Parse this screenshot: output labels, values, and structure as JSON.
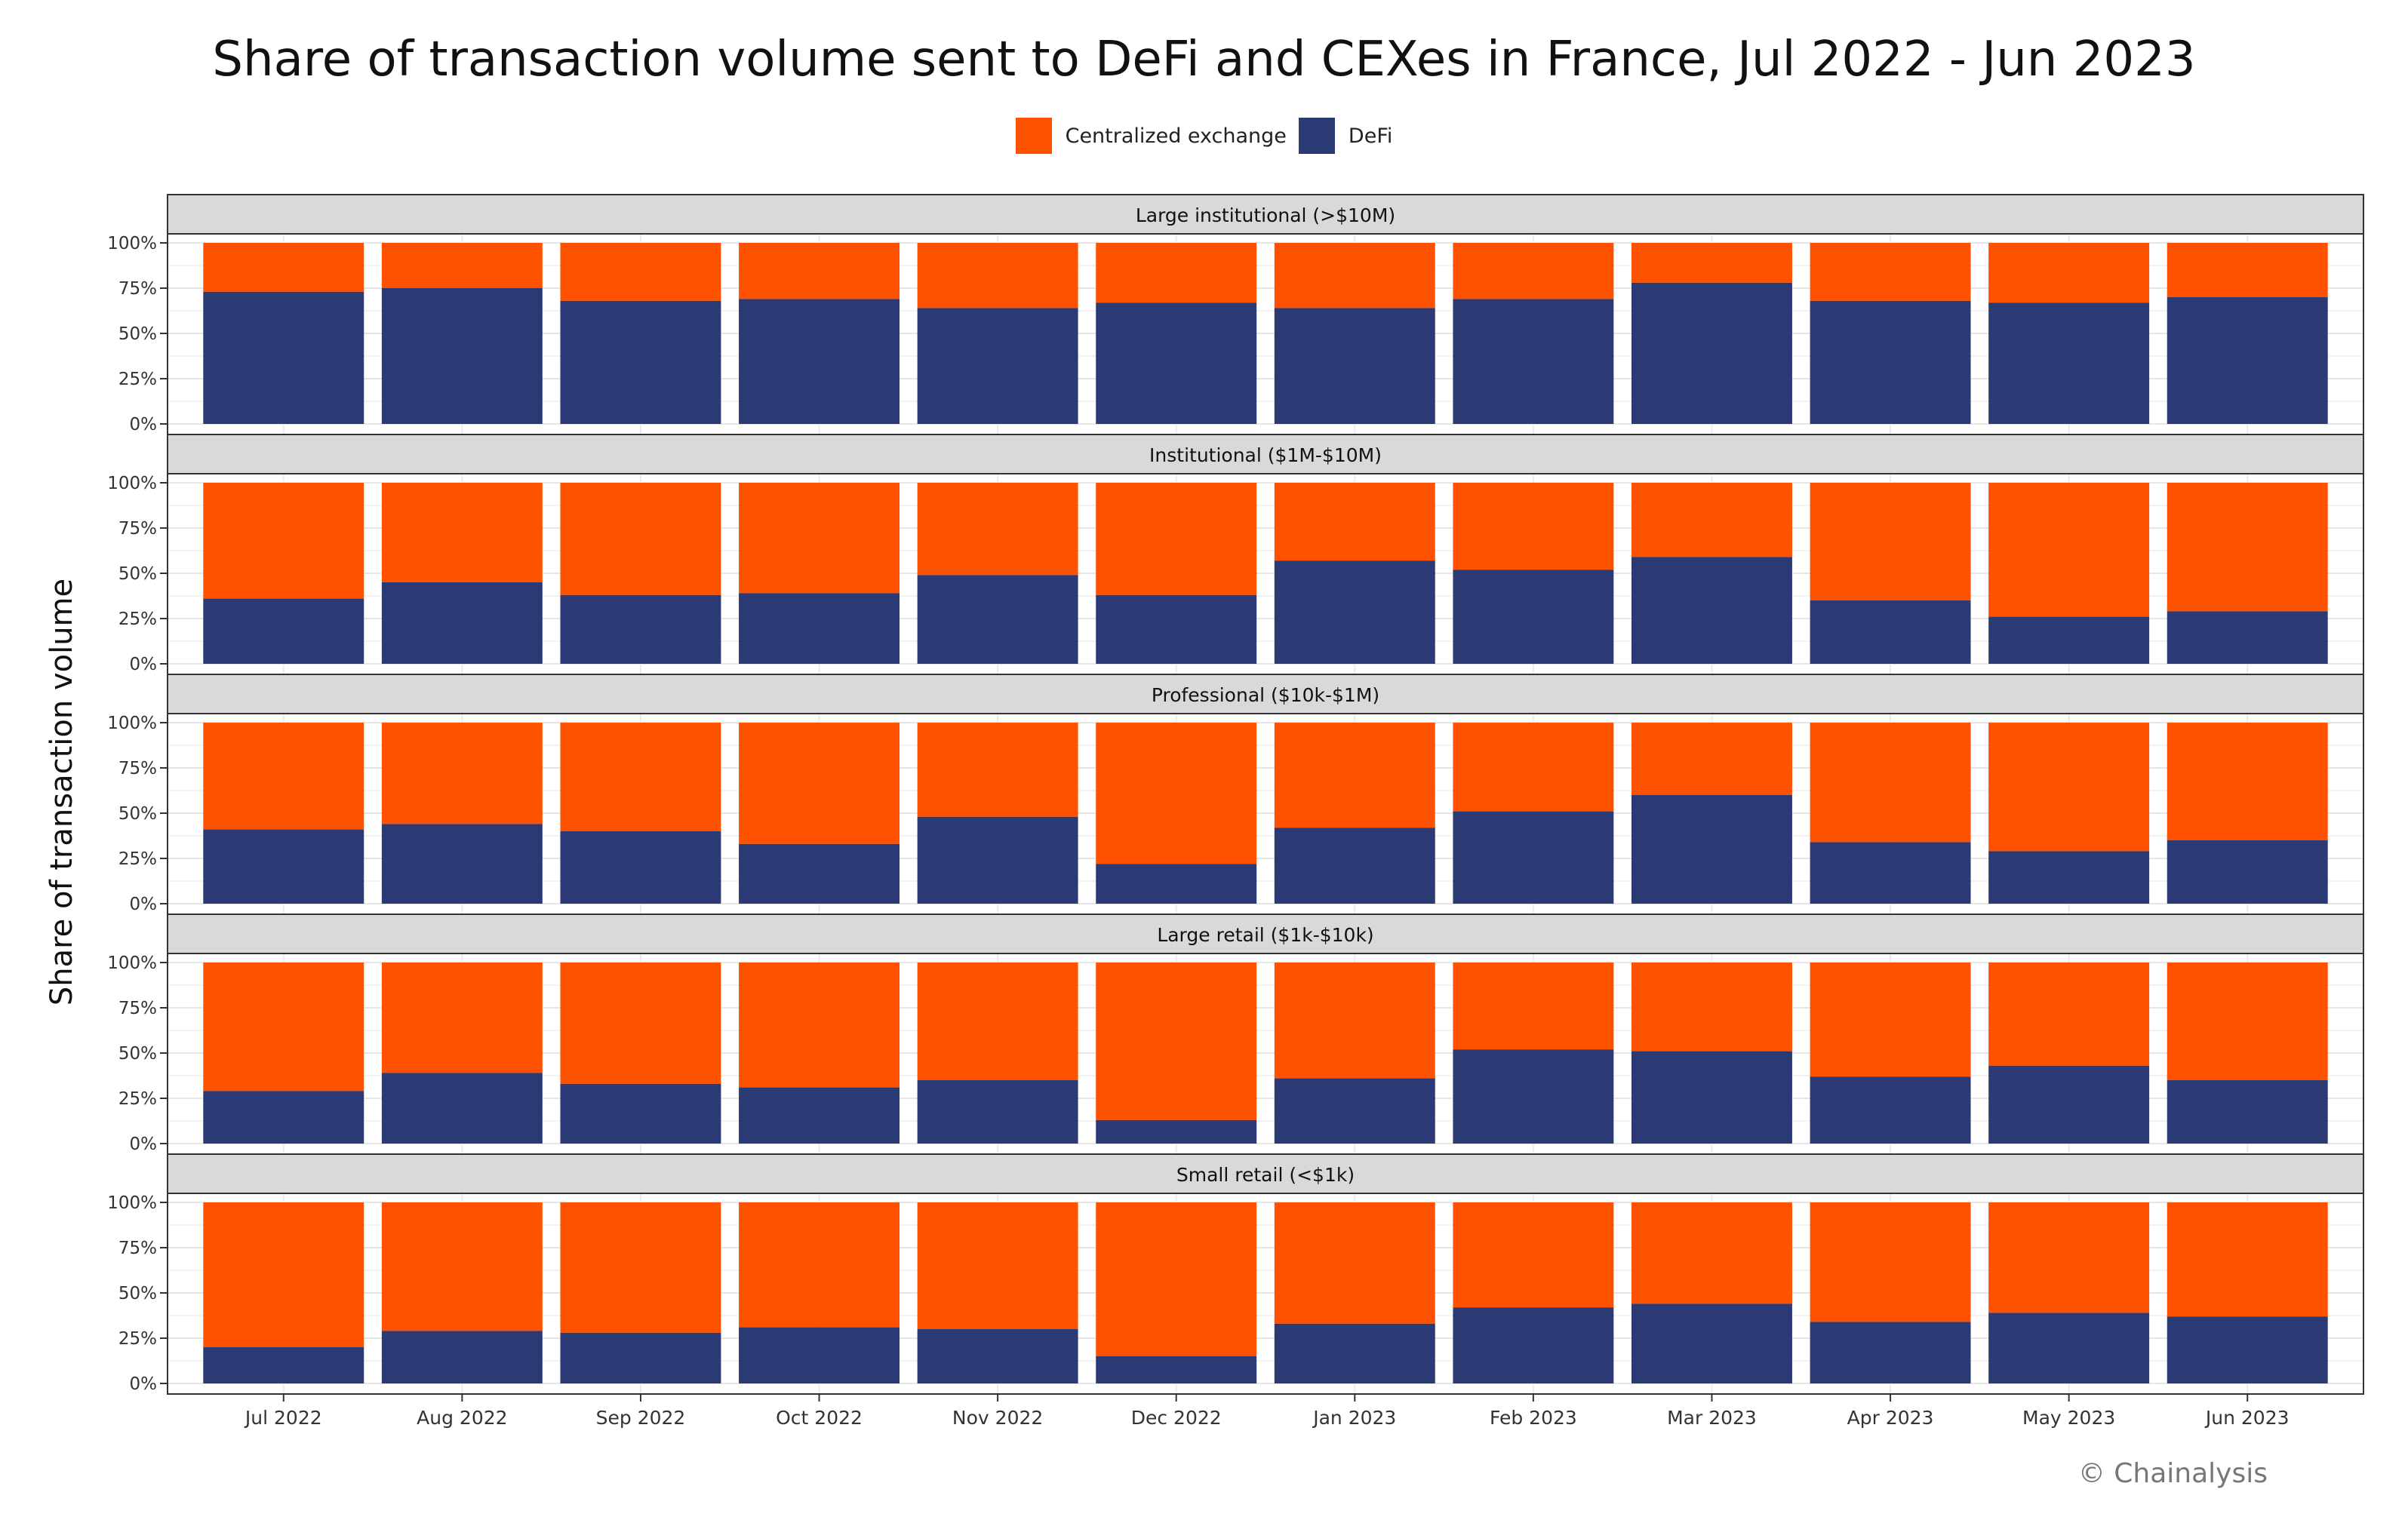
{
  "chart_data": {
    "type": "bar",
    "stacked": true,
    "title": "Share of transaction volume sent to DeFi and CEXes in France, Jul 2022 - Jun 2023",
    "ylabel": "Share of transaction volume",
    "xlabel": "",
    "ylim": [
      0,
      1
    ],
    "yticks": [
      "0%",
      "25%",
      "50%",
      "75%",
      "100%"
    ],
    "categories": [
      "Jul 2022",
      "Aug 2022",
      "Sep 2022",
      "Oct 2022",
      "Nov 2022",
      "Dec 2022",
      "Jan 2023",
      "Feb 2023",
      "Mar 2023",
      "Apr 2023",
      "May 2023",
      "Jun 2023"
    ],
    "legend": [
      {
        "name": "Centralized exchange",
        "color": "#ff5200"
      },
      {
        "name": "DeFi",
        "color": "#2b3a74"
      }
    ],
    "facets": [
      {
        "label": "Large institutional (>$10M)",
        "defi": [
          0.73,
          0.75,
          0.68,
          0.69,
          0.64,
          0.67,
          0.64,
          0.69,
          0.78,
          0.68,
          0.67,
          0.7
        ]
      },
      {
        "label": "Institutional ($1M-$10M)",
        "defi": [
          0.36,
          0.45,
          0.38,
          0.39,
          0.49,
          0.38,
          0.57,
          0.52,
          0.59,
          0.35,
          0.26,
          0.29
        ]
      },
      {
        "label": "Professional ($10k-$1M)",
        "defi": [
          0.41,
          0.44,
          0.4,
          0.33,
          0.48,
          0.22,
          0.42,
          0.51,
          0.6,
          0.34,
          0.29,
          0.35
        ]
      },
      {
        "label": "Large retail ($1k-$10k)",
        "defi": [
          0.29,
          0.39,
          0.33,
          0.31,
          0.35,
          0.13,
          0.36,
          0.52,
          0.51,
          0.37,
          0.43,
          0.35
        ]
      },
      {
        "label": "Small retail (<$1k)",
        "defi": [
          0.2,
          0.29,
          0.28,
          0.31,
          0.3,
          0.15,
          0.33,
          0.42,
          0.44,
          0.34,
          0.39,
          0.37
        ]
      }
    ]
  },
  "credit": "© Chainalysis"
}
